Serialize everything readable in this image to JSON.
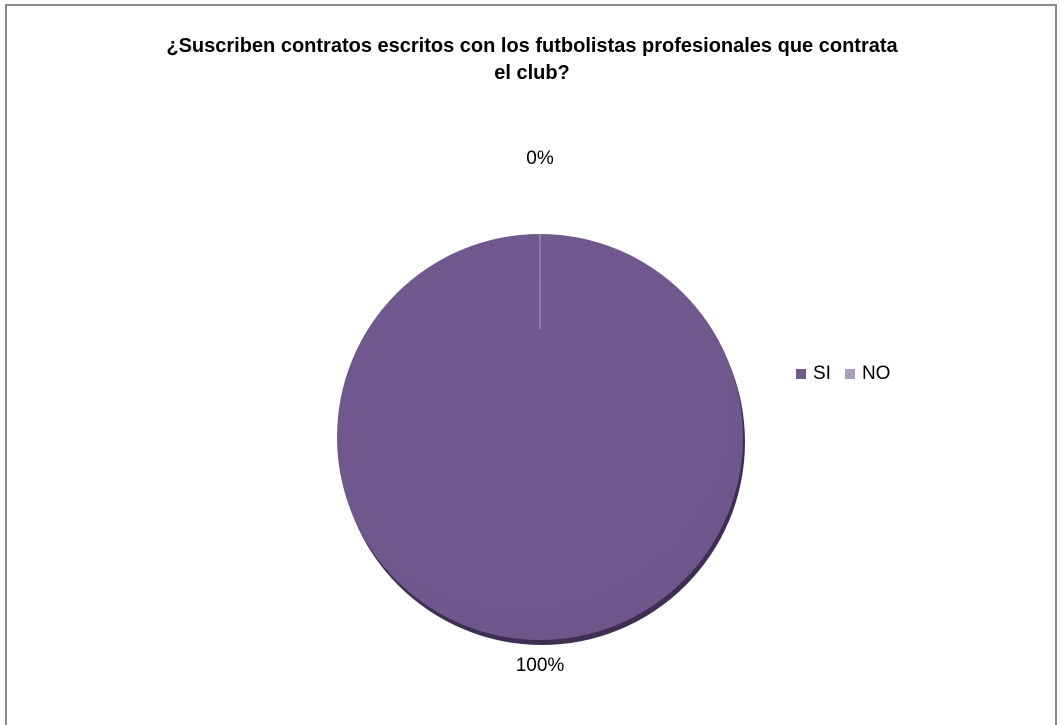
{
  "chart_data": {
    "type": "pie",
    "title_lines": [
      "¿Suscriben contratos escritos con los futbolistas profesionales que contrata",
      "el club?"
    ],
    "categories": [
      "SI",
      "NO"
    ],
    "values": [
      100,
      0
    ],
    "data_labels": [
      "100%",
      "0%"
    ],
    "colors": [
      "#72598f",
      "#a89cbf"
    ],
    "legend_position": "right"
  }
}
